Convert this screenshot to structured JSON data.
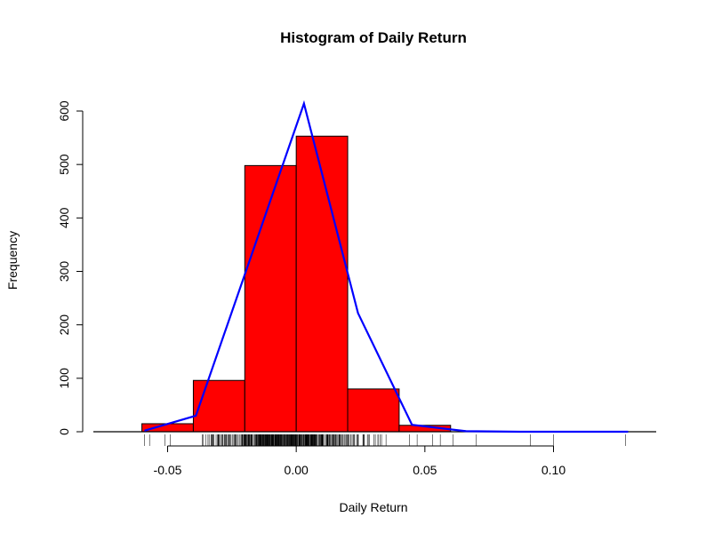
{
  "chart_data": {
    "type": "bar",
    "title": "Histogram of Daily Return",
    "xlabel": "Daily Return",
    "ylabel": "Frequency",
    "xlim": [
      -0.08,
      0.14
    ],
    "ylim": [
      0,
      600
    ],
    "x_ticks": [
      -0.05,
      0.0,
      0.05,
      0.1
    ],
    "x_tick_labels": [
      "-0.05",
      "0.00",
      "0.05",
      "0.10"
    ],
    "y_ticks": [
      0,
      100,
      200,
      300,
      400,
      500,
      600
    ],
    "y_tick_labels": [
      "0",
      "100",
      "200",
      "300",
      "400",
      "500",
      "600"
    ],
    "bins": [
      {
        "x0": -0.06,
        "x1": -0.04,
        "count": 15
      },
      {
        "x0": -0.04,
        "x1": -0.02,
        "count": 96
      },
      {
        "x0": -0.02,
        "x1": 0.0,
        "count": 498
      },
      {
        "x0": 0.0,
        "x1": 0.02,
        "count": 553
      },
      {
        "x0": 0.02,
        "x1": 0.04,
        "count": 80
      },
      {
        "x0": 0.04,
        "x1": 0.06,
        "count": 12
      }
    ],
    "bar_color": "#ff0000",
    "density_line": {
      "color": "#0000ff",
      "x": [
        -0.059,
        -0.039,
        0.003,
        0.024,
        0.045,
        0.066,
        0.087,
        0.108,
        0.129
      ],
      "y": [
        2,
        30,
        614,
        222,
        13,
        1,
        0,
        0,
        0
      ]
    },
    "rug": {
      "sparse": [
        -0.059,
        -0.057,
        -0.051,
        -0.049,
        0.044,
        0.047,
        0.053,
        0.056,
        0.061,
        0.07,
        0.091,
        0.1,
        0.128
      ],
      "dense_range": [
        -0.047,
        0.04
      ]
    },
    "grid": false,
    "legend": "none"
  }
}
